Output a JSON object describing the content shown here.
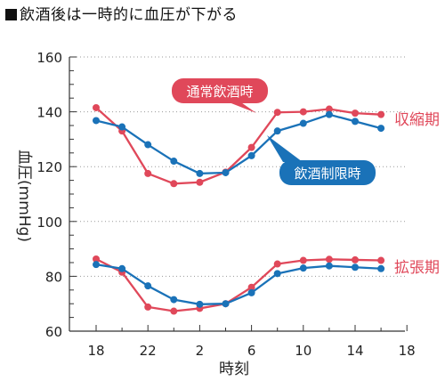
{
  "chart_data": {
    "type": "line",
    "title": "飲酒後は一時的に血圧が下がる",
    "xlabel": "時刻",
    "ylabel": "血圧(mmHg)",
    "ylim": [
      60,
      160
    ],
    "yticks": [
      60,
      80,
      100,
      120,
      140,
      160
    ],
    "x_tick_labels": [
      "18",
      "22",
      "2",
      "6",
      "10",
      "14",
      "18"
    ],
    "x": [
      "18",
      "20",
      "22",
      "0",
      "2",
      "4",
      "6",
      "8",
      "10",
      "12",
      "14",
      "16"
    ],
    "grid": "horizontal dotted",
    "series": [
      {
        "name": "通常飲酒時",
        "group": "収縮期",
        "color": "#e0485a",
        "values": [
          141.5,
          133,
          117.5,
          113.8,
          114.3,
          118,
          127,
          139.8,
          140,
          141,
          139.5,
          139
        ]
      },
      {
        "name": "飲酒制限時",
        "group": "収縮期",
        "color": "#1a72b8",
        "values": [
          136.8,
          134.5,
          128,
          122,
          117.5,
          117.8,
          124,
          133,
          135.8,
          139,
          136.5,
          134
        ]
      },
      {
        "name": "通常飲酒時",
        "group": "拡張期",
        "color": "#e0485a",
        "values": [
          86.3,
          81.5,
          68.8,
          67.3,
          68.3,
          70,
          76,
          84.5,
          85.8,
          86.2,
          86,
          85.8
        ]
      },
      {
        "name": "飲酒制限時",
        "group": "拡張期",
        "color": "#1a72b8",
        "values": [
          84.3,
          82.8,
          76.5,
          71.5,
          69.8,
          70,
          74,
          81,
          83,
          83.8,
          83.3,
          82.8
        ]
      }
    ],
    "group_labels": [
      "収縮期",
      "拡張期"
    ],
    "callouts": [
      "通常飲酒時",
      "飲酒制限時"
    ],
    "colors": {
      "drinking": "#e0485a",
      "restricted": "#1a72b8"
    }
  }
}
